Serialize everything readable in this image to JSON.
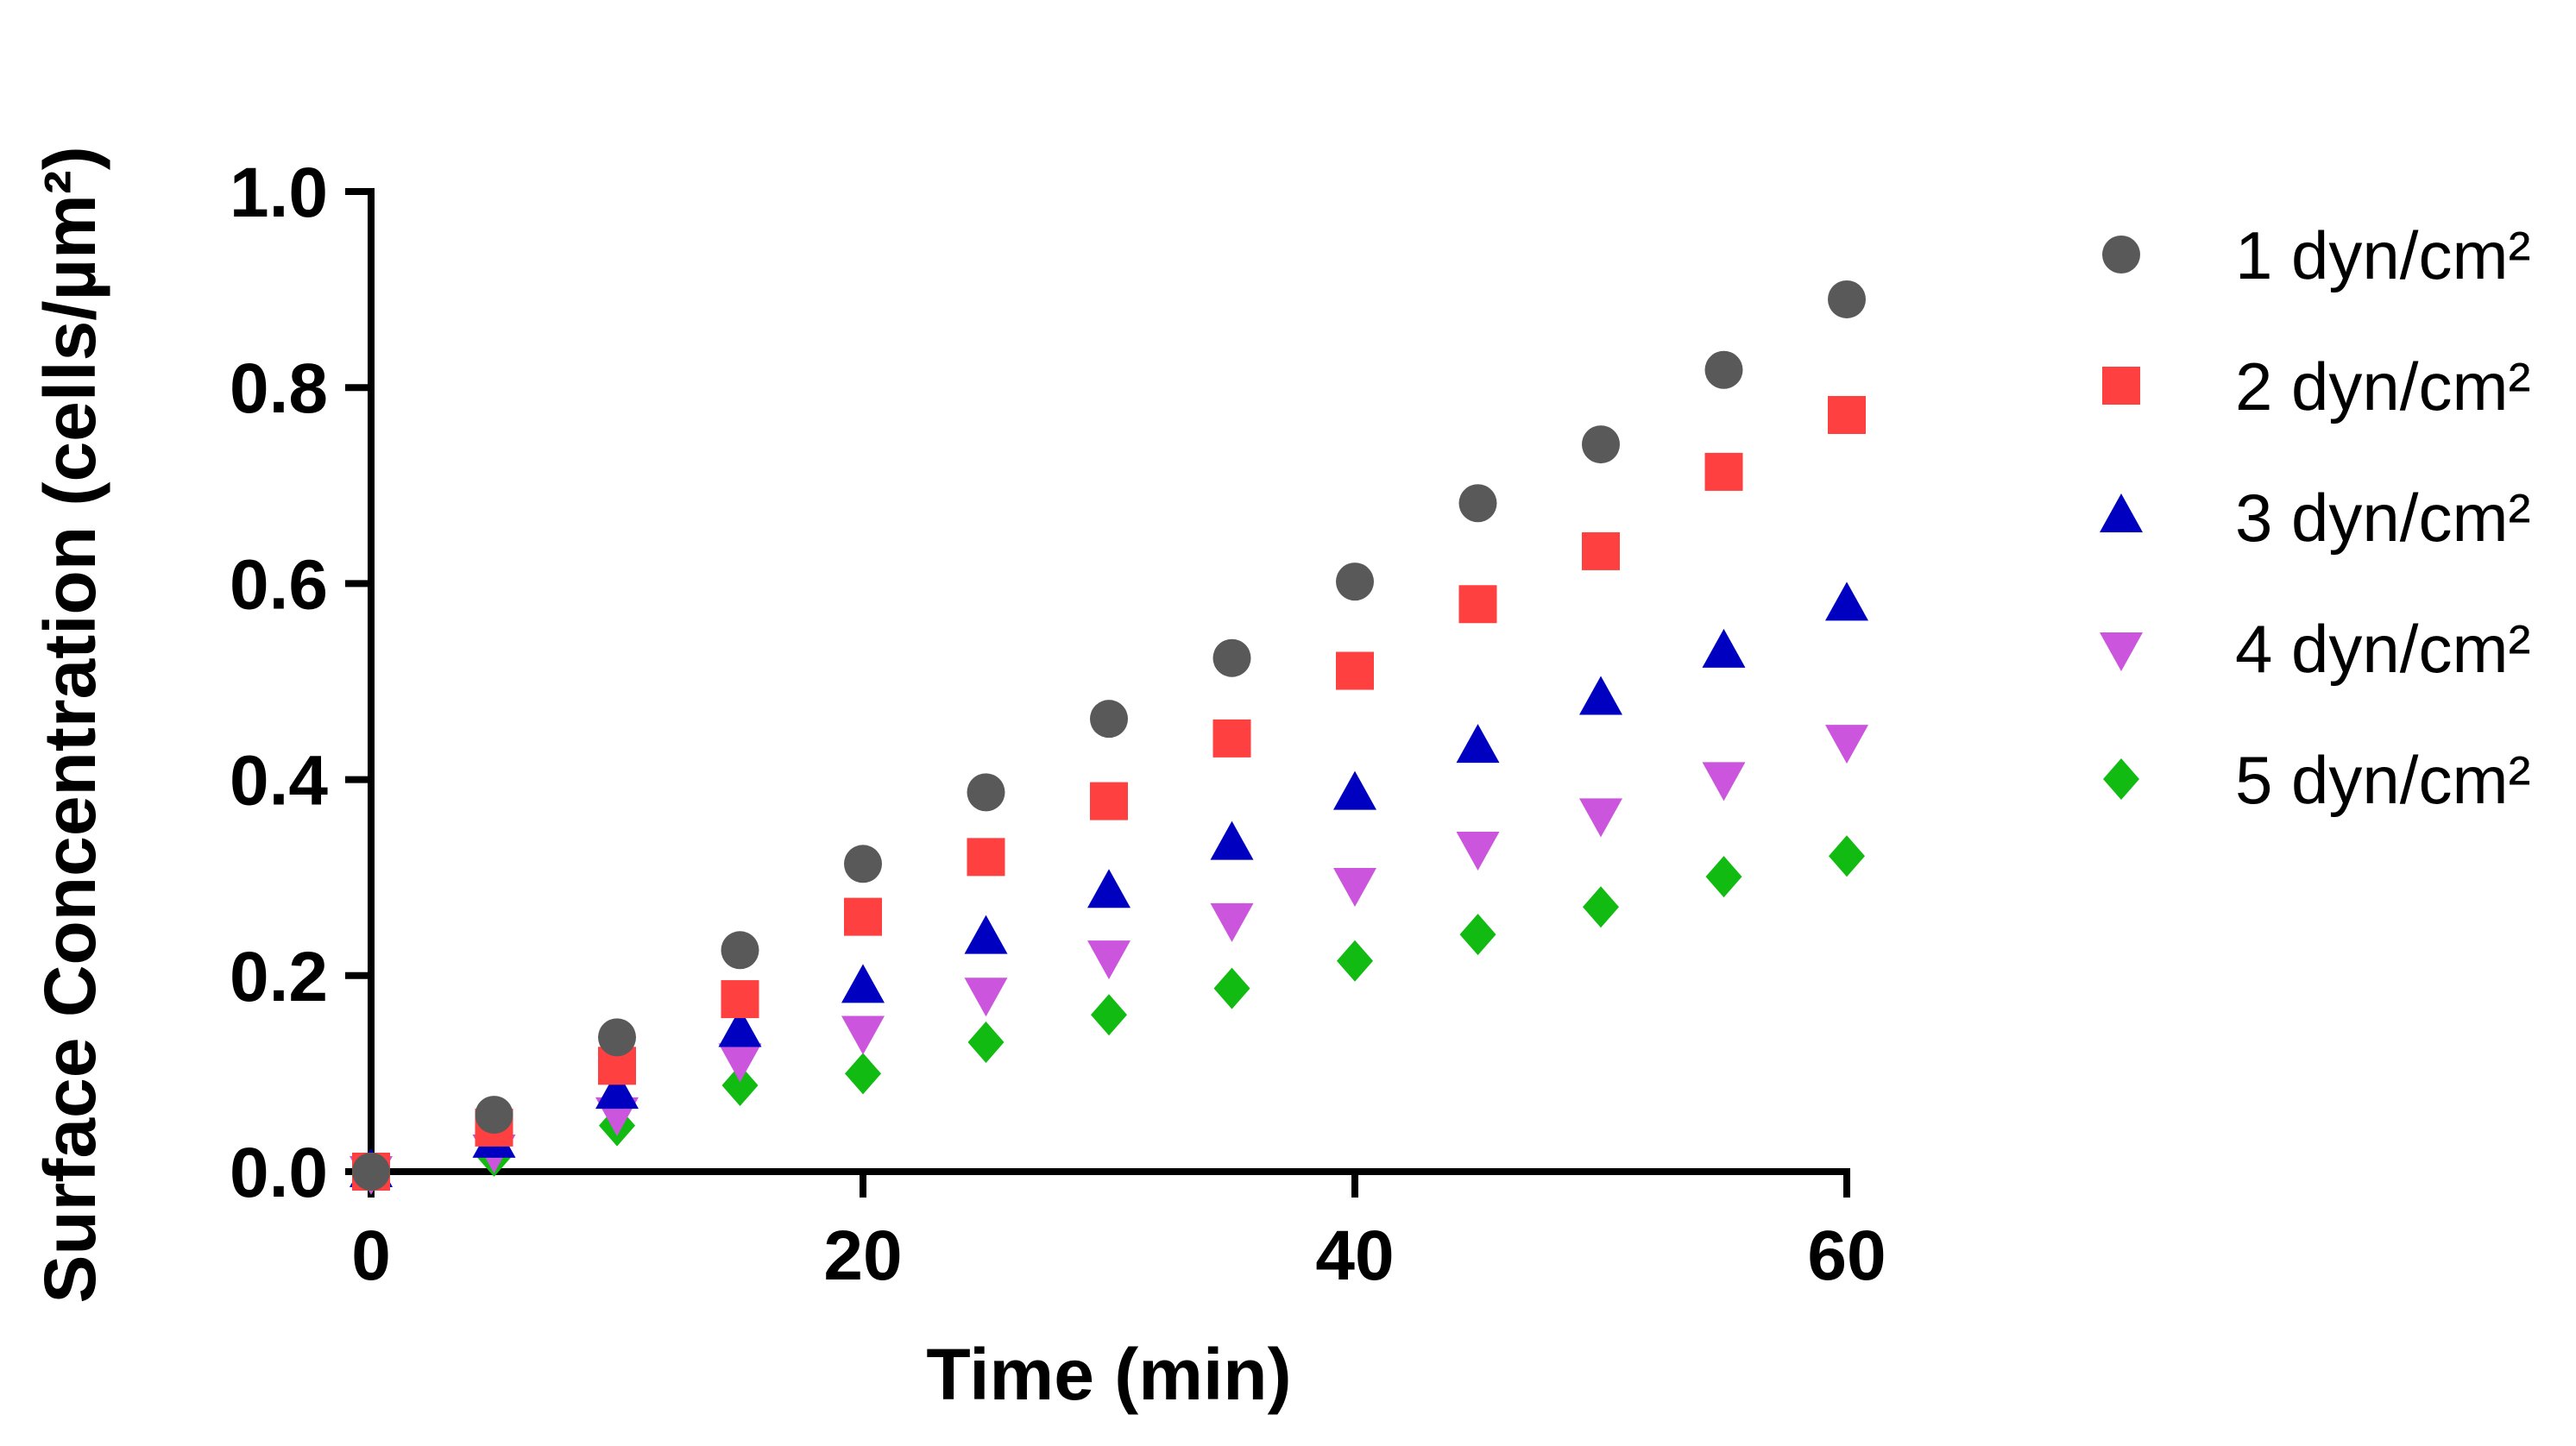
{
  "chart_data": {
    "type": "scatter",
    "title": "",
    "xlabel": "Time (min)",
    "ylabel": "Surface Concentration (cells/µm²)",
    "xlim": [
      0,
      60
    ],
    "ylim": [
      0,
      1.0
    ],
    "xticks": [
      0,
      20,
      40,
      60
    ],
    "xtick_labels": [
      "0",
      "20",
      "40",
      "60"
    ],
    "yticks": [
      0,
      0.2,
      0.4,
      0.6,
      0.8,
      1.0
    ],
    "ytick_labels": [
      "0.0",
      "0.2",
      "0.4",
      "0.6",
      "0.8",
      "1.0"
    ],
    "grid": false,
    "legend_position": "right",
    "x": [
      0,
      5,
      10,
      15,
      20,
      25,
      30,
      35,
      40,
      45,
      50,
      55,
      60
    ],
    "series": [
      {
        "name": "1 dyn/cm²",
        "marker": "circle",
        "color": "#595959",
        "values": [
          0.0,
          0.058,
          0.137,
          0.226,
          0.314,
          0.387,
          0.462,
          0.524,
          0.602,
          0.682,
          0.742,
          0.818,
          0.89
        ]
      },
      {
        "name": "2 dyn/cm²",
        "marker": "square",
        "color": "#ff4040",
        "values": [
          0.0,
          0.045,
          0.108,
          0.176,
          0.26,
          0.321,
          0.378,
          0.442,
          0.511,
          0.579,
          0.633,
          0.714,
          0.772
        ]
      },
      {
        "name": "3 dyn/cm²",
        "marker": "triangle-up",
        "color": "#0000c0",
        "values": [
          0.0,
          0.03,
          0.08,
          0.143,
          0.188,
          0.238,
          0.285,
          0.334,
          0.385,
          0.433,
          0.482,
          0.53,
          0.578
        ]
      },
      {
        "name": "4 dyn/cm²",
        "marker": "triangle-down",
        "color": "#cc55dd",
        "values": [
          0.0,
          0.022,
          0.06,
          0.115,
          0.143,
          0.182,
          0.22,
          0.258,
          0.294,
          0.331,
          0.365,
          0.402,
          0.44
        ]
      },
      {
        "name": "5 dyn/cm²",
        "marker": "diamond",
        "color": "#11bb11",
        "values": [
          0.0,
          0.016,
          0.047,
          0.088,
          0.1,
          0.132,
          0.16,
          0.187,
          0.215,
          0.242,
          0.27,
          0.301,
          0.322
        ]
      }
    ]
  }
}
